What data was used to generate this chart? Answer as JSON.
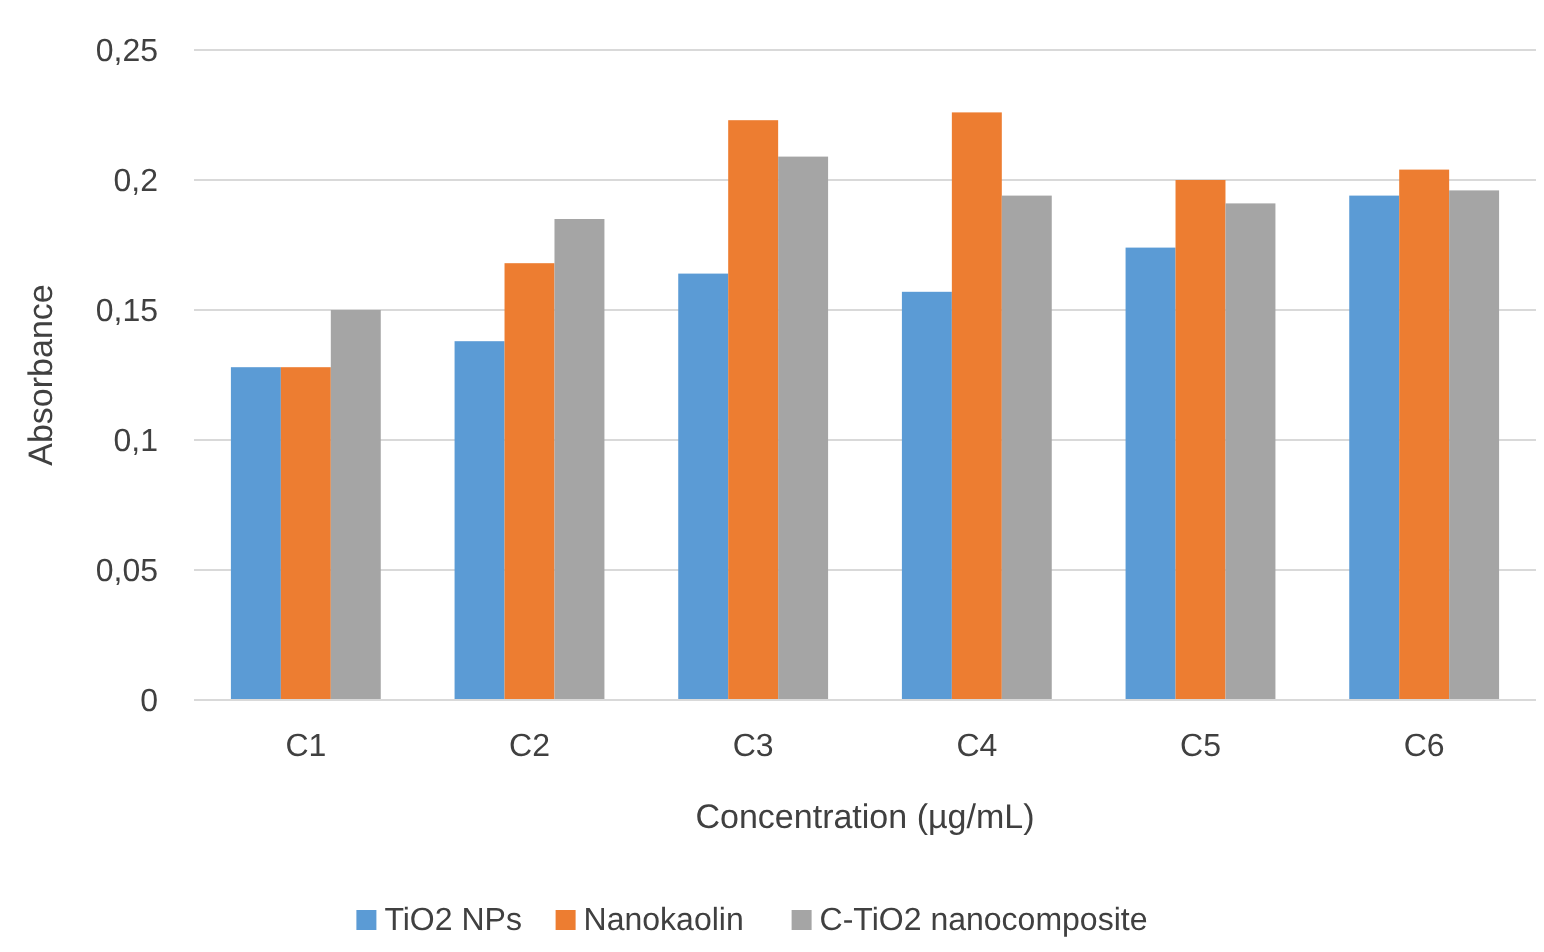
{
  "chart_data": {
    "type": "bar",
    "xlabel": "Concentration (µg/mL)",
    "ylabel": "Absorbance",
    "categories": [
      "C1",
      "C2",
      "C3",
      "C4",
      "C5",
      "C6"
    ],
    "series": [
      {
        "name": "TiO2 NPs",
        "color": "#5b9bd5",
        "values": [
          0.128,
          0.138,
          0.164,
          0.157,
          0.174,
          0.194
        ]
      },
      {
        "name": "Nanokaolin",
        "color": "#ed7d31",
        "values": [
          0.128,
          0.168,
          0.223,
          0.226,
          0.2,
          0.204
        ]
      },
      {
        "name": "C-TiO2 nanocomposite",
        "color": "#a5a5a5",
        "values": [
          0.15,
          0.185,
          0.209,
          0.194,
          0.191,
          0.196
        ]
      }
    ],
    "ylim": [
      0,
      0.25
    ],
    "yticks": [
      {
        "value": 0,
        "label": "0"
      },
      {
        "value": 0.05,
        "label": "0,05"
      },
      {
        "value": 0.1,
        "label": "0,1"
      },
      {
        "value": 0.15,
        "label": "0,15"
      },
      {
        "value": 0.2,
        "label": "0,2"
      },
      {
        "value": 0.25,
        "label": "0,25"
      }
    ],
    "grid": "y",
    "legend": "bottom"
  }
}
